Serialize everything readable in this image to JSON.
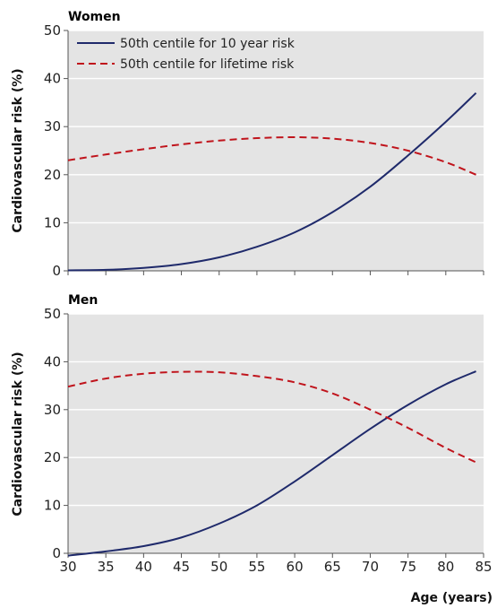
{
  "chart_data": [
    {
      "type": "line",
      "title": "Women",
      "xlabel": "",
      "ylabel": "Cardiovascular risk (%)",
      "xlim": [
        30,
        85
      ],
      "ylim": [
        0,
        50
      ],
      "x_ticks": [
        30,
        35,
        40,
        45,
        50,
        55,
        60,
        65,
        70,
        75,
        80,
        85
      ],
      "y_ticks": [
        0,
        10,
        20,
        30,
        40,
        50
      ],
      "x_tick_labels_shown": false,
      "grid": true,
      "legend": "top-left",
      "series": [
        {
          "name": "50th centile for 10 year risk",
          "style": "solid",
          "color": "#1f2a6b",
          "x": [
            30,
            35,
            40,
            45,
            50,
            55,
            60,
            65,
            70,
            75,
            80,
            84
          ],
          "y": [
            0.1,
            0.2,
            0.6,
            1.4,
            2.8,
            5.0,
            8.0,
            12.2,
            17.5,
            24.0,
            31.0,
            37.0
          ]
        },
        {
          "name": "50th centile for lifetime risk",
          "style": "dashed",
          "color": "#c0141c",
          "x": [
            30,
            35,
            40,
            45,
            50,
            55,
            60,
            65,
            70,
            75,
            80,
            84
          ],
          "y": [
            23.0,
            24.2,
            25.3,
            26.3,
            27.1,
            27.6,
            27.8,
            27.5,
            26.6,
            25.0,
            22.6,
            20.0
          ]
        }
      ]
    },
    {
      "type": "line",
      "title": "Men",
      "xlabel": "Age (years)",
      "ylabel": "Cardiovascular risk (%)",
      "xlim": [
        30,
        85
      ],
      "ylim": [
        0,
        50
      ],
      "x_ticks": [
        30,
        35,
        40,
        45,
        50,
        55,
        60,
        65,
        70,
        75,
        80,
        85
      ],
      "y_ticks": [
        0,
        10,
        20,
        30,
        40,
        50
      ],
      "x_tick_labels_shown": true,
      "grid": true,
      "series": [
        {
          "name": "50th centile for 10 year risk",
          "style": "solid",
          "color": "#1f2a6b",
          "x": [
            30,
            35,
            40,
            45,
            50,
            55,
            60,
            65,
            70,
            75,
            80,
            84
          ],
          "y": [
            -0.5,
            0.4,
            1.5,
            3.3,
            6.2,
            10.0,
            15.0,
            20.5,
            26.0,
            31.0,
            35.3,
            38.0
          ]
        },
        {
          "name": "50th centile for lifetime risk",
          "style": "dashed",
          "color": "#c0141c",
          "x": [
            30,
            35,
            40,
            45,
            50,
            55,
            60,
            65,
            70,
            75,
            80,
            84
          ],
          "y": [
            34.8,
            36.5,
            37.5,
            37.9,
            37.8,
            37.0,
            35.7,
            33.4,
            30.0,
            26.2,
            22.0,
            19.0
          ]
        }
      ]
    }
  ]
}
